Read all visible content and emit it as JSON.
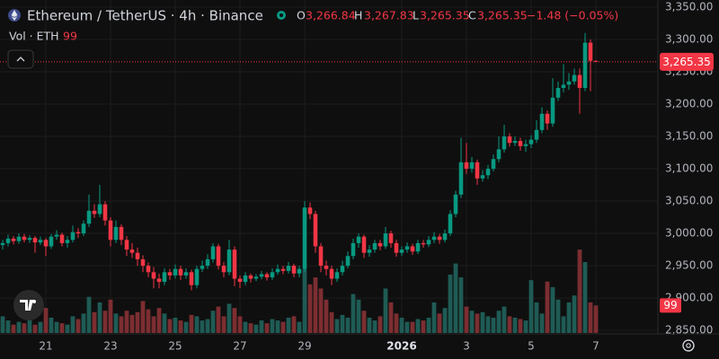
{
  "chart_data": {
    "type": "candlestick",
    "legend": {
      "symbol": "Ethereum / TetherUS · 4h · Binance",
      "o_label": "O",
      "o": "3,266.84",
      "h_label": "H",
      "h": "3,267.83",
      "l_label": "L",
      "l": "3,265.35",
      "c_label": "C",
      "c": "3,265.35",
      "change": "−1.48 (−0.05%)",
      "volume_title": "Vol · ETH",
      "volume_value": "99"
    },
    "last_price_label": "3,265.35",
    "last_volume_label": "99",
    "up_color": "#089981",
    "down_color": "#f23645",
    "volume_up_color": "#1f5b55",
    "volume_down_color": "#7c2e31",
    "grid": true,
    "xlim": [
      -0.5,
      121.5
    ],
    "xticks": [
      {
        "value": 8,
        "label": "21"
      },
      {
        "value": 20,
        "label": "23"
      },
      {
        "value": 32,
        "label": "25"
      },
      {
        "value": 44,
        "label": "27"
      },
      {
        "value": 56,
        "label": "29"
      },
      {
        "value": 74,
        "label": "2026"
      },
      {
        "value": 86,
        "label": "3"
      },
      {
        "value": 98,
        "label": "5"
      },
      {
        "value": 110,
        "label": "7"
      }
    ],
    "ylim": [
      2846,
      3361
    ],
    "yticks": [
      {
        "value": 3350,
        "label": "3,350.00"
      },
      {
        "value": 3300,
        "label": "3,300.00"
      },
      {
        "value": 3250,
        "label": "3,250.00"
      },
      {
        "value": 3200,
        "label": "3,200.00"
      },
      {
        "value": 3150,
        "label": "3,150.00"
      },
      {
        "value": 3100,
        "label": "3,100.00"
      },
      {
        "value": 3050,
        "label": "3,050.00"
      },
      {
        "value": 3000,
        "label": "3,000.00"
      },
      {
        "value": 2950,
        "label": "2,950.00"
      },
      {
        "value": 2900,
        "label": "2,900.00"
      },
      {
        "value": 2850,
        "label": "2,850.00"
      }
    ],
    "volume_lim": [
      0,
      310
    ],
    "open": [
      2982,
      2985,
      2992,
      2988,
      2995,
      2990,
      2993,
      2986,
      2990,
      2980,
      2995,
      2998,
      2985,
      2990,
      3002,
      3000,
      3015,
      3035,
      3030,
      3045,
      3020,
      2990,
      3010,
      2990,
      2975,
      2970,
      2960,
      2950,
      2940,
      2930,
      2925,
      2940,
      2935,
      2945,
      2935,
      2940,
      2920,
      2945,
      2950,
      2960,
      2980,
      2950,
      2940,
      2975,
      2930,
      2925,
      2935,
      2930,
      2933,
      2937,
      2932,
      2940,
      2945,
      2942,
      2950,
      2938,
      2945,
      3040,
      3030,
      2980,
      2950,
      2945,
      2930,
      2940,
      2950,
      2965,
      2985,
      2995,
      2970,
      2975,
      2985,
      2980,
      3000,
      2985,
      2970,
      2975,
      2980,
      2972,
      2985,
      2983,
      2990,
      2995,
      2990,
      3000,
      3030,
      3060,
      3110,
      3100,
      3110,
      3085,
      3090,
      3100,
      3115,
      3130,
      3150,
      3140,
      3143,
      3135,
      3138,
      3145,
      3160,
      3185,
      3170,
      3210,
      3225,
      3230,
      3235,
      3245,
      3225,
      3295,
      3266.84
    ],
    "high": [
      2990,
      2998,
      2996,
      3000,
      2999,
      2997,
      2996,
      2995,
      2993,
      2999,
      3005,
      3001,
      2996,
      3012,
      3008,
      3020,
      3060,
      3045,
      3075,
      3050,
      3025,
      3020,
      3014,
      2996,
      2985,
      2978,
      2966,
      2955,
      2948,
      2938,
      2946,
      2945,
      2952,
      2950,
      2946,
      2944,
      2950,
      2958,
      2968,
      2985,
      2984,
      2956,
      2990,
      2980,
      2935,
      2940,
      2938,
      2937,
      2942,
      2940,
      2946,
      2952,
      2950,
      2956,
      2953,
      2950,
      3050,
      3048,
      3035,
      2985,
      2958,
      2950,
      2946,
      2958,
      2972,
      2992,
      3000,
      2998,
      2982,
      2990,
      2990,
      3010,
      3004,
      2990,
      2980,
      2986,
      2984,
      2990,
      2990,
      2996,
      3002,
      2999,
      3006,
      3036,
      3066,
      3148,
      3140,
      3118,
      3114,
      3098,
      3106,
      3122,
      3150,
      3168,
      3155,
      3150,
      3148,
      3145,
      3152,
      3175,
      3195,
      3190,
      3240,
      3235,
      3262,
      3248,
      3255,
      3255,
      3310,
      3300,
      3267.83
    ],
    "low": [
      2975,
      2980,
      2983,
      2984,
      2986,
      2985,
      2970,
      2982,
      2965,
      2976,
      2990,
      2980,
      2978,
      2986,
      2993,
      2996,
      3010,
      3024,
      3025,
      3012,
      2980,
      2985,
      2982,
      2965,
      2962,
      2950,
      2940,
      2932,
      2915,
      2915,
      2920,
      2928,
      2930,
      2928,
      2930,
      2912,
      2915,
      2940,
      2945,
      2955,
      2944,
      2932,
      2935,
      2918,
      2915,
      2920,
      2924,
      2926,
      2929,
      2927,
      2928,
      2936,
      2937,
      2938,
      2932,
      2932,
      2940,
      3022,
      2970,
      2940,
      2935,
      2920,
      2925,
      2935,
      2946,
      2960,
      2978,
      2962,
      2964,
      2970,
      2974,
      2976,
      2978,
      2964,
      2965,
      2970,
      2967,
      2968,
      2978,
      2979,
      2985,
      2984,
      2986,
      2996,
      3025,
      3055,
      3092,
      3094,
      3075,
      3080,
      3084,
      3096,
      3110,
      3125,
      3134,
      3135,
      3128,
      3126,
      3132,
      3140,
      3155,
      3160,
      3165,
      3205,
      3218,
      3222,
      3230,
      3185,
      3220,
      3220,
      3265.35
    ],
    "close": [
      2985,
      2992,
      2988,
      2995,
      2990,
      2993,
      2986,
      2990,
      2980,
      2995,
      2998,
      2985,
      2990,
      3002,
      3000,
      3015,
      3035,
      3030,
      3045,
      3020,
      2990,
      3010,
      2990,
      2975,
      2970,
      2960,
      2950,
      2940,
      2930,
      2925,
      2940,
      2935,
      2945,
      2935,
      2940,
      2920,
      2945,
      2950,
      2960,
      2980,
      2950,
      2940,
      2975,
      2930,
      2925,
      2935,
      2930,
      2933,
      2937,
      2932,
      2940,
      2945,
      2942,
      2950,
      2938,
      2945,
      3040,
      3030,
      2980,
      2950,
      2945,
      2930,
      2940,
      2950,
      2965,
      2985,
      2995,
      2970,
      2975,
      2985,
      2980,
      3000,
      2985,
      2970,
      2975,
      2980,
      2972,
      2985,
      2983,
      2990,
      2995,
      2990,
      3000,
      3030,
      3060,
      3110,
      3100,
      3110,
      3085,
      3090,
      3100,
      3115,
      3130,
      3150,
      3140,
      3143,
      3135,
      3138,
      3145,
      3160,
      3185,
      3170,
      3210,
      3225,
      3230,
      3235,
      3245,
      3225,
      3295,
      3266.84,
      3265.35
    ],
    "volume": [
      60,
      45,
      30,
      40,
      35,
      50,
      30,
      40,
      90,
      55,
      40,
      35,
      30,
      60,
      50,
      70,
      130,
      75,
      110,
      80,
      120,
      70,
      60,
      80,
      65,
      75,
      115,
      85,
      60,
      90,
      70,
      50,
      55,
      45,
      40,
      65,
      60,
      45,
      50,
      80,
      95,
      60,
      105,
      90,
      60,
      40,
      35,
      30,
      45,
      35,
      50,
      45,
      40,
      55,
      60,
      40,
      230,
      175,
      200,
      160,
      120,
      75,
      50,
      65,
      55,
      140,
      120,
      80,
      55,
      45,
      60,
      160,
      110,
      70,
      55,
      40,
      40,
      50,
      45,
      55,
      110,
      70,
      90,
      210,
      250,
      200,
      95,
      80,
      70,
      75,
      60,
      55,
      80,
      95,
      60,
      55,
      50,
      45,
      190,
      110,
      70,
      185,
      165,
      120,
      60,
      110,
      135,
      300,
      255,
      110,
      99
    ]
  }
}
